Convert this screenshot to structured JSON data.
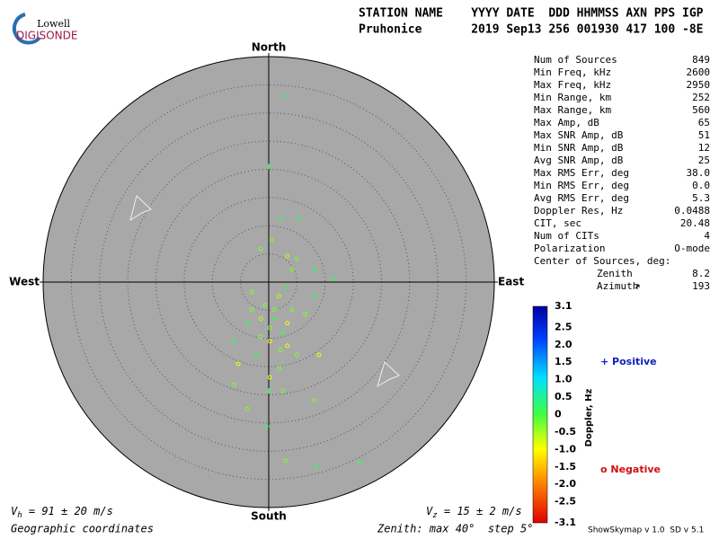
{
  "logo": {
    "top": "Lowell",
    "bottom": "DIGISONDE"
  },
  "header": {
    "line1": "STATION NAME    YYYY DATE  DDD HHMMSS AXN PPS IGP",
    "line2": "Pruhonice       2019 Sep13 256 001930 417 100 -8E"
  },
  "skymap": {
    "zenith_range": [
      0,
      40
    ],
    "zenith_step": 5,
    "directions": {
      "north": "North",
      "south": "South",
      "west": "West",
      "east": "East"
    },
    "sources": [
      {
        "east": 2.5,
        "north": 33,
        "doppler": 0.2
      },
      {
        "east": 0,
        "north": 20.5,
        "doppler": 0.2
      },
      {
        "east": 0.5,
        "north": 7.5,
        "doppler": -0.3
      },
      {
        "east": 2.2,
        "north": 11.3,
        "doppler": 0.2
      },
      {
        "east": 5.4,
        "north": 11.3,
        "doppler": 0.2
      },
      {
        "east": -1.4,
        "north": 5.9,
        "doppler": -0.3
      },
      {
        "east": 3.3,
        "north": 4.6,
        "doppler": -0.6
      },
      {
        "east": 4.1,
        "north": 2.2,
        "doppler": -0.3
      },
      {
        "east": 8.1,
        "north": 2.2,
        "doppler": 0.2
      },
      {
        "east": 11.6,
        "north": 0.6,
        "doppler": 0.2
      },
      {
        "east": -3,
        "north": -1.8,
        "doppler": -0.3
      },
      {
        "east": -0.6,
        "north": -4.1,
        "doppler": -0.3
      },
      {
        "east": 1.8,
        "north": -2.5,
        "doppler": -0.6
      },
      {
        "east": 1,
        "north": -6.5,
        "doppler": 0.2
      },
      {
        "east": 0.2,
        "north": -8.1,
        "doppler": -0.3
      },
      {
        "east": 2.5,
        "north": -8.9,
        "doppler": 0.2
      },
      {
        "east": -1.4,
        "north": -9.7,
        "doppler": -0.3
      },
      {
        "east": 3.3,
        "north": -11.3,
        "doppler": -0.9
      },
      {
        "east": -2.2,
        "north": -12.9,
        "doppler": 0.2
      },
      {
        "east": 5,
        "north": -12.9,
        "doppler": -0.3
      },
      {
        "east": -6.2,
        "north": -10.5,
        "doppler": 0.2
      },
      {
        "east": -5.4,
        "north": -14.5,
        "doppler": -0.9
      },
      {
        "east": 8.9,
        "north": -12.9,
        "doppler": -0.9
      },
      {
        "east": 8.1,
        "north": -2.5,
        "doppler": 0.2
      },
      {
        "east": 6.5,
        "north": -5.7,
        "doppler": -0.3
      },
      {
        "east": -3.8,
        "north": -7.3,
        "doppler": 0.2
      },
      {
        "east": 1.8,
        "north": -15.3,
        "doppler": -0.3
      },
      {
        "east": 0.2,
        "north": -16.9,
        "doppler": -0.9
      },
      {
        "east": 2.5,
        "north": -19.3,
        "doppler": -0.3
      },
      {
        "east": 0,
        "north": -19.3,
        "doppler": 0.2
      },
      {
        "east": -3.8,
        "north": -22.5,
        "doppler": -0.3
      },
      {
        "east": 8.1,
        "north": -21,
        "doppler": -0.3
      },
      {
        "east": -0.3,
        "north": -25.6,
        "doppler": 0.2
      },
      {
        "east": 3,
        "north": -31.7,
        "doppler": -0.3
      },
      {
        "east": 8.4,
        "north": -32.8,
        "doppler": 0.2
      },
      {
        "east": 16,
        "north": -32,
        "doppler": 0.2
      },
      {
        "east": -6.2,
        "north": -18.2,
        "doppler": -0.3
      },
      {
        "east": 3.3,
        "north": -7.3,
        "doppler": -0.9
      },
      {
        "east": 1,
        "north": -4.9,
        "doppler": -0.3
      },
      {
        "east": -1.4,
        "north": -6.5,
        "doppler": -0.6
      },
      {
        "east": 4.1,
        "north": -4.9,
        "doppler": -0.3
      },
      {
        "east": 0.2,
        "north": -10.5,
        "doppler": -0.9
      },
      {
        "east": 2.1,
        "north": -12,
        "doppler": -0.3
      },
      {
        "east": -3,
        "north": -4.9,
        "doppler": -0.3
      },
      {
        "east": 3,
        "north": -1,
        "doppler": 0.2
      },
      {
        "east": 5,
        "north": 4.1,
        "doppler": -0.3
      }
    ]
  },
  "stats": [
    {
      "label": "Num of Sources",
      "value": "849"
    },
    {
      "label": "Min Freq, kHz",
      "value": "2600"
    },
    {
      "label": "Max Freq, kHz",
      "value": "2950"
    },
    {
      "label": "Min Range, km",
      "value": "252"
    },
    {
      "label": "Max Range, km",
      "value": "560"
    },
    {
      "label": "Max Amp, dB",
      "value": "65"
    },
    {
      "label": "Max SNR Amp, dB",
      "value": "51"
    },
    {
      "label": "Min SNR Amp, dB",
      "value": "12"
    },
    {
      "label": "Avg SNR Amp, dB",
      "value": "25"
    },
    {
      "label": "Max RMS Err, deg",
      "value": "38.0"
    },
    {
      "label": "Min RMS Err, deg",
      "value": "0.0"
    },
    {
      "label": "Avg RMS Err, deg",
      "value": "5.3"
    },
    {
      "label": "Doppler Res, Hz",
      "value": "0.0488"
    },
    {
      "label": "CIT, sec",
      "value": "20.48"
    },
    {
      "label": "Num of CITs",
      "value": "4"
    },
    {
      "label": "Polarization",
      "value": "O-mode"
    }
  ],
  "center": {
    "title": "Center of Sources, deg:",
    "zenith_label": "Zenith",
    "zenith": "8.2",
    "azimuth_label": "Azimuth",
    "azimuth": "193"
  },
  "colorbar": {
    "title": "Doppler, Hz",
    "range": [
      -3.1,
      3.1
    ],
    "ticks": [
      3.1,
      2.5,
      {
        "value": 2,
        "label": "2.0"
      },
      1.5,
      {
        "value": 1,
        "label": "1.0"
      },
      0.5,
      0,
      -0.5,
      {
        "value": -1,
        "label": "-1.0"
      },
      -1.5,
      {
        "value": -2,
        "label": "-2.0"
      },
      -2.5,
      -3.1
    ],
    "positive": "+ Positive",
    "negative": "o Negative"
  },
  "velocity": {
    "vh": {
      "symbol": "V",
      "sub": "h",
      "text": " = 91 ± 20 m/s"
    },
    "vz": {
      "symbol": "V",
      "sub": "z",
      "text": " = 15 ± 2 m/s"
    }
  },
  "footer": {
    "coords": "Geographic coordinates",
    "zenith": "Zenith: max 40°  step 5°",
    "version": "ShowSkymap v 1.0  SD v 5.1"
  }
}
